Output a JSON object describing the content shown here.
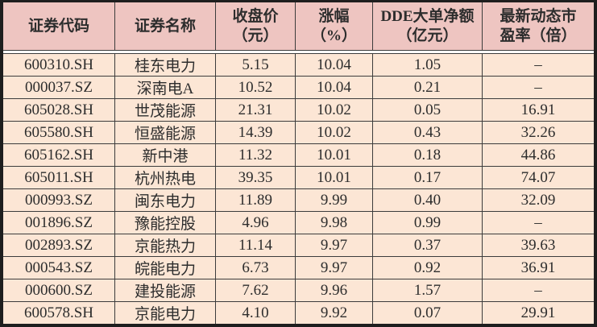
{
  "chart_data": {
    "type": "table",
    "headers": [
      "证券代码",
      "证券名称",
      "收盘价\n（元）",
      "涨幅\n（%）",
      "DDE大单净额\n（亿元）",
      "最新动态市\n盈率（倍）"
    ],
    "column_full_names": [
      "证券代码",
      "证券名称",
      "收盘价（元）",
      "涨幅（%）",
      "DDE大单净额（亿元）",
      "最新动态市盈率（倍）"
    ],
    "empty_value_placeholder": "–",
    "rows": [
      {
        "code": "600310.SH",
        "name": "桂东电力",
        "close": "5.15",
        "change": "10.04",
        "dde": "1.05",
        "pe": "–"
      },
      {
        "code": "000037.SZ",
        "name": "深南电A",
        "close": "10.52",
        "change": "10.04",
        "dde": "0.21",
        "pe": "–"
      },
      {
        "code": "605028.SH",
        "name": "世茂能源",
        "close": "21.31",
        "change": "10.02",
        "dde": "0.05",
        "pe": "16.91"
      },
      {
        "code": "605580.SH",
        "name": "恒盛能源",
        "close": "14.39",
        "change": "10.02",
        "dde": "0.43",
        "pe": "32.26"
      },
      {
        "code": "605162.SH",
        "name": "新中港",
        "close": "11.32",
        "change": "10.01",
        "dde": "0.18",
        "pe": "44.86"
      },
      {
        "code": "605011.SH",
        "name": "杭州热电",
        "close": "39.35",
        "change": "10.01",
        "dde": "0.17",
        "pe": "74.07"
      },
      {
        "code": "000993.SZ",
        "name": "闽东电力",
        "close": "11.89",
        "change": "9.99",
        "dde": "0.40",
        "pe": "32.09"
      },
      {
        "code": "001896.SZ",
        "name": "豫能控股",
        "close": "4.96",
        "change": "9.98",
        "dde": "0.99",
        "pe": "–"
      },
      {
        "code": "002893.SZ",
        "name": "京能热力",
        "close": "11.14",
        "change": "9.97",
        "dde": "0.37",
        "pe": "39.63"
      },
      {
        "code": "000543.SZ",
        "name": "皖能电力",
        "close": "6.73",
        "change": "9.97",
        "dde": "0.92",
        "pe": "36.91"
      },
      {
        "code": "000600.SZ",
        "name": "建投能源",
        "close": "7.62",
        "change": "9.96",
        "dde": "1.57",
        "pe": "–"
      },
      {
        "code": "600578.SH",
        "name": "京能电力",
        "close": "4.10",
        "change": "9.92",
        "dde": "0.07",
        "pe": "29.91"
      }
    ]
  },
  "colors": {
    "header_background": "#eec5c1",
    "body_background": "#fce6d5",
    "grid_line": "#3c3c3c",
    "outer_border": "#1e1e1e",
    "text": "#2d2d2d",
    "header_body_separator": "#ffffff"
  }
}
